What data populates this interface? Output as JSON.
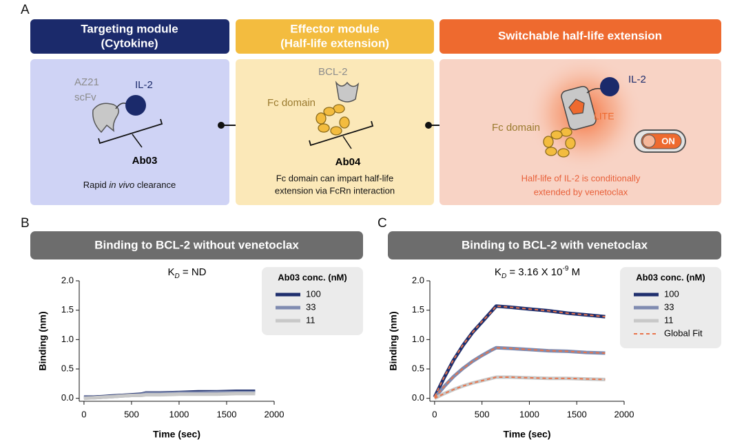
{
  "panel_a": {
    "label": "A",
    "targeting": {
      "header": [
        "Targeting module",
        "(Cytokine)"
      ],
      "scfv": [
        "AZ21",
        "scFv"
      ],
      "cytokine": "IL-2",
      "antibody": "Ab03",
      "caption": [
        "Rapid ",
        "in vivo",
        " clearance"
      ]
    },
    "effector": {
      "header": [
        "Effector module",
        "(Half-life extension)"
      ],
      "target": "BCL-2",
      "fc": "Fc domain",
      "antibody": "Ab04",
      "caption": [
        "Fc domain can impart half-life",
        "extension via FcRn interaction"
      ]
    },
    "switchable": {
      "header": "Switchable half-life extension",
      "cytokine": "IL-2",
      "lite": "LITE",
      "fc": "Fc domain",
      "switch": "ON",
      "caption": [
        "Half-life of IL-2 is conditionally",
        "extended by venetoclax"
      ]
    }
  },
  "chart_data": [
    {
      "type": "line",
      "panel_label": "B",
      "title": "Binding to BCL-2 without venetoclax",
      "annotation": {
        "symbol": "K",
        "subscript": "D",
        "text": " = ND"
      },
      "xlabel": "Time (sec)",
      "ylabel": "Binding (nm)",
      "x": [
        0,
        100,
        200,
        300,
        400,
        500,
        600,
        650,
        800,
        1000,
        1200,
        1400,
        1600,
        1800
      ],
      "xlim": [
        -50,
        2000
      ],
      "xticks": [
        0,
        500,
        1000,
        1500,
        2000
      ],
      "ylim": [
        -0.05,
        2.0
      ],
      "yticks": [
        {
          "value": 0,
          "label": "0.0"
        },
        {
          "value": 0.5,
          "label": "0.5"
        },
        {
          "value": 1,
          "label": "1.0"
        },
        {
          "value": 1.5,
          "label": "1.5"
        },
        {
          "value": 2,
          "label": "2.0"
        }
      ],
      "legend_title": "Ab03 conc. (nM)",
      "legend": "upper right",
      "series": [
        {
          "name": "100",
          "color": "#1f2f6e",
          "values": [
            0.02,
            0.02,
            0.03,
            0.04,
            0.05,
            0.06,
            0.07,
            0.09,
            0.09,
            0.1,
            0.11,
            0.11,
            0.12,
            0.12
          ]
        },
        {
          "name": "33",
          "color": "#7f8bb0",
          "values": [
            0.01,
            0.01,
            0.02,
            0.03,
            0.04,
            0.05,
            0.06,
            0.08,
            0.08,
            0.09,
            0.09,
            0.1,
            0.1,
            0.1
          ]
        },
        {
          "name": "11",
          "color": "#c8c8c8",
          "values": [
            0.0,
            0.01,
            0.02,
            0.03,
            0.04,
            0.05,
            0.05,
            0.06,
            0.06,
            0.07,
            0.07,
            0.07,
            0.08,
            0.08
          ]
        }
      ]
    },
    {
      "type": "line",
      "panel_label": "C",
      "title": "Binding to BCL-2 with venetoclax",
      "annotation": {
        "symbol": "K",
        "subscript": "D",
        "text": " = 3.16 X 10",
        "superscript": "-9",
        "unit": " M"
      },
      "xlabel": "Time (sec)",
      "ylabel": "Binding (nm)",
      "x": [
        0,
        100,
        200,
        300,
        400,
        500,
        600,
        650,
        800,
        1000,
        1200,
        1400,
        1600,
        1800
      ],
      "xlim": [
        -50,
        2000
      ],
      "xticks": [
        0,
        500,
        1000,
        1500,
        2000
      ],
      "ylim": [
        -0.05,
        2.0
      ],
      "yticks": [
        {
          "value": 0,
          "label": "0.0"
        },
        {
          "value": 0.5,
          "label": "0.5"
        },
        {
          "value": 1,
          "label": "1.0"
        },
        {
          "value": 1.5,
          "label": "1.5"
        },
        {
          "value": 2,
          "label": "2.0"
        }
      ],
      "legend_title": "Ab03 conc. (nM)",
      "legend": "upper right",
      "series": [
        {
          "name": "100",
          "color": "#1f2f6e",
          "values": [
            0.02,
            0.35,
            0.65,
            0.9,
            1.12,
            1.3,
            1.48,
            1.57,
            1.55,
            1.52,
            1.49,
            1.45,
            1.42,
            1.39
          ]
        },
        {
          "name": "33",
          "color": "#7f8bb0",
          "values": [
            0.01,
            0.2,
            0.37,
            0.51,
            0.63,
            0.73,
            0.82,
            0.86,
            0.85,
            0.83,
            0.81,
            0.8,
            0.78,
            0.77
          ]
        },
        {
          "name": "11",
          "color": "#c8c8c8",
          "values": [
            0.0,
            0.08,
            0.15,
            0.21,
            0.26,
            0.3,
            0.34,
            0.36,
            0.36,
            0.35,
            0.34,
            0.34,
            0.33,
            0.32
          ]
        }
      ],
      "fit": {
        "name": "Global Fit",
        "color": "#e8734a",
        "values": [
          [
            0.03,
            0.36,
            0.66,
            0.91,
            1.12,
            1.31,
            1.47,
            1.57,
            1.55,
            1.52,
            1.49,
            1.45,
            1.42,
            1.39
          ],
          [
            0.01,
            0.2,
            0.37,
            0.51,
            0.63,
            0.73,
            0.82,
            0.86,
            0.85,
            0.83,
            0.81,
            0.8,
            0.78,
            0.77
          ],
          [
            0.0,
            0.08,
            0.15,
            0.21,
            0.26,
            0.3,
            0.34,
            0.36,
            0.36,
            0.35,
            0.34,
            0.34,
            0.33,
            0.32
          ]
        ]
      }
    }
  ]
}
